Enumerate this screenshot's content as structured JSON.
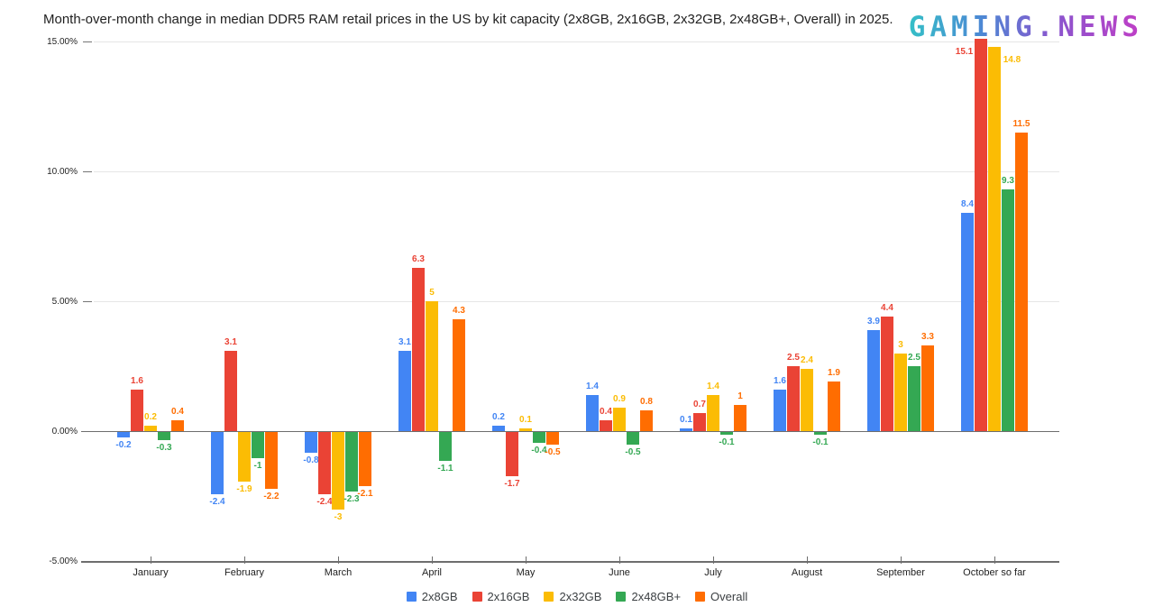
{
  "logo": {
    "text": "GAMING.NEWS"
  },
  "chart_data": {
    "type": "bar",
    "title": "Month-over-month change in median DDR5 RAM retail prices in the US by kit capacity (2x8GB, 2x16GB, 2x32GB, 2x48GB+, Overall) in 2025.",
    "categories": [
      "January",
      "February",
      "March",
      "April",
      "May",
      "June",
      "July",
      "August",
      "September",
      "October so far"
    ],
    "series": [
      {
        "name": "2x8GB",
        "color": "#4285F4",
        "values": [
          -0.2,
          -2.4,
          -0.8,
          3.1,
          0.2,
          1.4,
          0.1,
          1.6,
          3.9,
          8.4
        ]
      },
      {
        "name": "2x16GB",
        "color": "#EA4335",
        "values": [
          1.6,
          3.1,
          -2.4,
          6.3,
          -1.7,
          0.4,
          0.7,
          2.5,
          4.4,
          15.1
        ]
      },
      {
        "name": "2x32GB",
        "color": "#FBBC04",
        "values": [
          0.2,
          -1.9,
          -3,
          5,
          0.1,
          0.9,
          1.4,
          2.4,
          3,
          14.8
        ]
      },
      {
        "name": "2x48GB+",
        "color": "#34A853",
        "values": [
          -0.3,
          -1,
          -2.3,
          -1.1,
          -0.4,
          -0.5,
          -0.1,
          -0.1,
          2.5,
          9.3
        ]
      },
      {
        "name": "Overall",
        "color": "#FF6D01",
        "values": [
          0.4,
          -2.2,
          -2.1,
          4.3,
          -0.5,
          0.8,
          1,
          1.9,
          3.3,
          11.5
        ]
      }
    ],
    "y_axis": {
      "min": -5,
      "max": 15,
      "ticks": [
        15,
        10,
        5,
        0,
        -5
      ],
      "tick_labels": [
        "15.00%",
        "10.00%",
        "5.00%",
        "0.00%",
        "-5.00%"
      ],
      "unit": "percent"
    },
    "grid": true,
    "legend_position": "bottom",
    "value_labels": true
  }
}
